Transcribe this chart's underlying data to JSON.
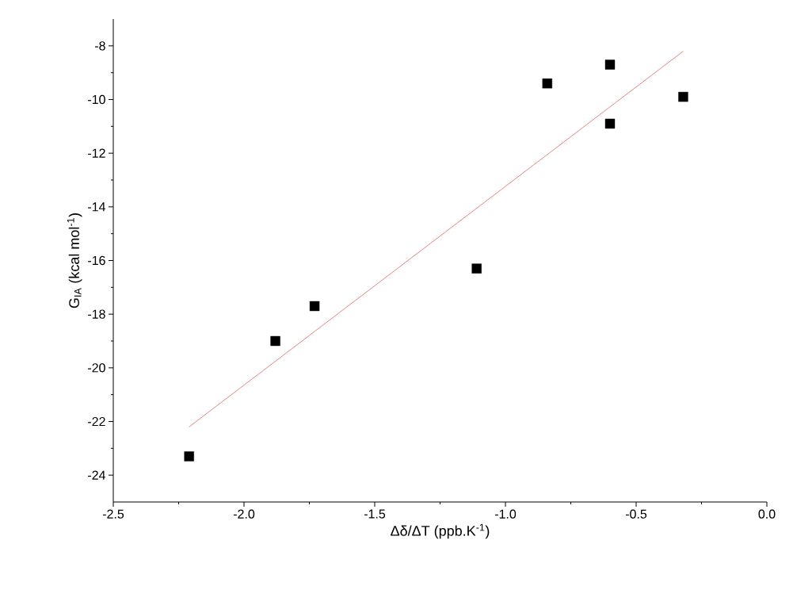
{
  "chart_data": {
    "type": "scatter",
    "xlabel": "Δδ/ΔT (ppb.K$^{-1}$)",
    "ylabel": "G$_{IA}$ (kcal mol$^{-1}$)",
    "xlim": [
      -2.5,
      0
    ],
    "ylim": [
      -25,
      -7
    ],
    "xticks": [
      {
        "value": -2.5,
        "label": "-2.5"
      },
      {
        "value": -2,
        "label": "-2.0"
      },
      {
        "value": -1.5,
        "label": "-1.5"
      },
      {
        "value": -1,
        "label": "-1.0"
      },
      {
        "value": -0.5,
        "label": "-0.5"
      },
      {
        "value": 0,
        "label": "0.0"
      }
    ],
    "yticks": [
      -24,
      -22,
      -20,
      -18,
      -16,
      -14,
      -12,
      -10,
      -8
    ],
    "series": [
      {
        "color": "#000000",
        "marker": "square",
        "x": [
          -2.21,
          -1.88,
          -1.73,
          -1.11,
          -0.84,
          -0.6,
          -0.6,
          -0.32
        ],
        "values": [
          -23.3,
          -19.0,
          -17.7,
          -16.3,
          -9.4,
          -8.7,
          -10.9,
          -9.9
        ]
      },
      {
        "type": "line",
        "color": "#e06666",
        "marker": "none",
        "line_style": "solid",
        "x": [
          -2.21,
          -0.32
        ],
        "values": [
          -22.2,
          -8.2
        ]
      }
    ]
  }
}
